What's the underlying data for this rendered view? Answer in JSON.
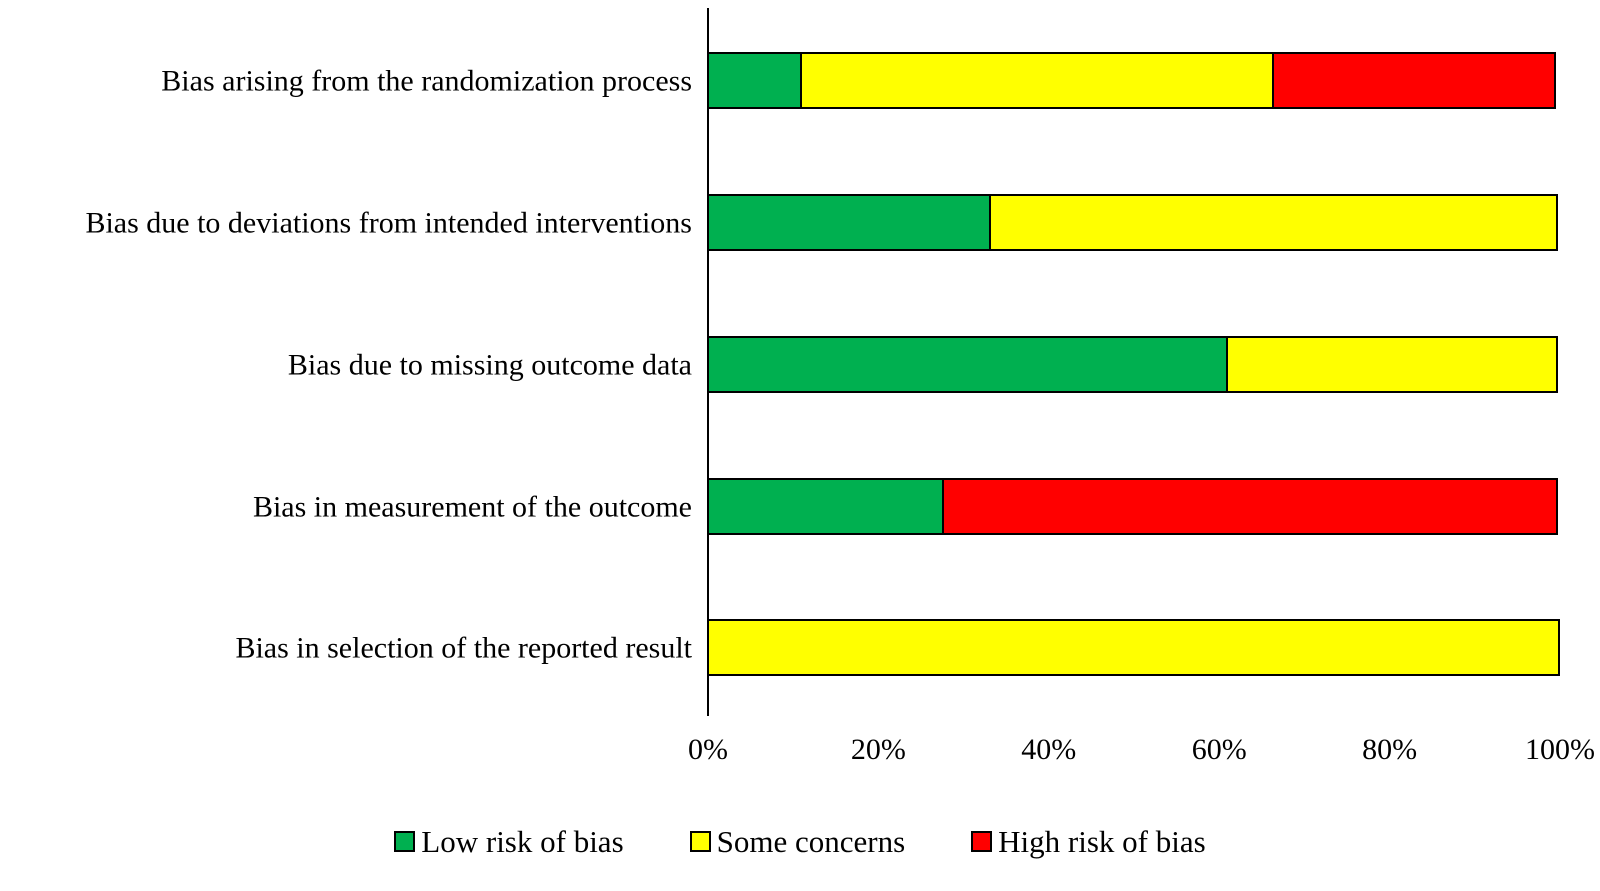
{
  "chart_data": {
    "type": "bar",
    "subtype": "horizontal-stacked-100-percent",
    "title": "",
    "xlabel": "",
    "ylabel": "",
    "grid": false,
    "categories": [
      "Bias arising from the randomization process",
      "Bias due to deviations from intended interventions",
      "Bias due to missing outcome data",
      "Bias in measurement of the outcome",
      "Bias in selection of the reported result"
    ],
    "series": [
      {
        "key": "low-risk",
        "name": "Low risk of bias",
        "color": "#00B050",
        "values": [
          11.1,
          33.3,
          61.1,
          27.8,
          0
        ]
      },
      {
        "key": "some-concerns",
        "name": "Some concerns",
        "color": "#FFFF00",
        "values": [
          55.6,
          66.7,
          38.9,
          0,
          100
        ]
      },
      {
        "key": "high-risk",
        "name": "High risk of bias",
        "color": "#FF0000",
        "values": [
          33.3,
          0,
          0,
          72.2,
          0
        ]
      }
    ],
    "x_axis": {
      "range": [
        0,
        100
      ],
      "tick_labels": [
        "0%",
        "20%",
        "40%",
        "60%",
        "80%",
        "100%"
      ]
    },
    "legend": {
      "position": "bottom",
      "entries": [
        "Low risk of bias",
        "Some concerns",
        "High risk of bias"
      ]
    }
  },
  "colors": {
    "background": "#FFFFFF",
    "bar_border": "#000000",
    "axis_line": "#000000",
    "text": "#000000"
  }
}
